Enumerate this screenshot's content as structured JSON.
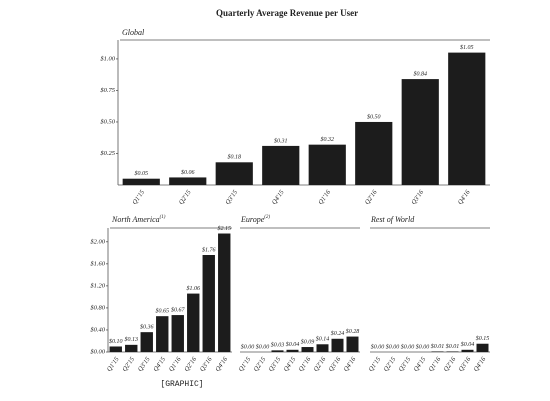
{
  "title": "Quarterly Average Revenue per User",
  "caption": "[GRAPHIC]",
  "chart_data": [
    {
      "type": "bar",
      "title": "Global",
      "color": "#1c1c1c",
      "categories": [
        "Q1'15",
        "Q2'15",
        "Q3'15",
        "Q4'15",
        "Q1'16",
        "Q2'16",
        "Q3'16",
        "Q4'16"
      ],
      "values": [
        0.05,
        0.06,
        0.18,
        0.31,
        0.32,
        0.5,
        0.84,
        1.05
      ],
      "value_labels": [
        "$0.05",
        "$0.06",
        "$0.18",
        "$0.31",
        "$0.32",
        "$0.50",
        "$0.84",
        "$1.05"
      ],
      "ylim": [
        0,
        1.15
      ],
      "yticks": [
        {
          "value": 0.25,
          "label": "$0.25"
        },
        {
          "value": 0.5,
          "label": "$0.50"
        },
        {
          "value": 0.75,
          "label": "$0.75"
        },
        {
          "value": 1.0,
          "label": "$1.00"
        }
      ]
    },
    {
      "type": "bar",
      "title": "North America",
      "footnote_marker": "(1)",
      "color": "#1c1c1c",
      "categories": [
        "Q1'15",
        "Q2'15",
        "Q3'15",
        "Q4'15",
        "Q1'16",
        "Q2'16",
        "Q3'16",
        "Q4'16"
      ],
      "values": [
        0.1,
        0.13,
        0.36,
        0.65,
        0.67,
        1.06,
        1.76,
        2.15
      ],
      "value_labels": [
        "$0.10",
        "$0.13",
        "$0.36",
        "$0.65",
        "$0.67",
        "$1.06",
        "$1.76",
        "$2.15"
      ],
      "ylim": [
        0,
        2.25
      ],
      "yticks": [
        {
          "value": 0,
          "label": "$0.00"
        },
        {
          "value": 0.4,
          "label": "$0.40"
        },
        {
          "value": 0.8,
          "label": "$0.80"
        },
        {
          "value": 1.2,
          "label": "$1.20"
        },
        {
          "value": 1.6,
          "label": "$1.60"
        },
        {
          "value": 2.0,
          "label": "$2.00"
        }
      ]
    },
    {
      "type": "bar",
      "title": "Europe",
      "footnote_marker": "(2)",
      "color": "#1c1c1c",
      "categories": [
        "Q1'15",
        "Q2'15",
        "Q3'15",
        "Q4'15",
        "Q1'16",
        "Q2'16",
        "Q3'16",
        "Q4'16"
      ],
      "values": [
        0.0,
        0.0,
        0.03,
        0.04,
        0.09,
        0.14,
        0.24,
        0.28
      ],
      "value_labels": [
        "$0.00",
        "$0.00",
        "$0.03",
        "$0.04",
        "$0.09",
        "$0.14",
        "$0.24",
        "$0.28"
      ],
      "ylim": [
        0,
        2.25
      ]
    },
    {
      "type": "bar",
      "title": "Rest of World",
      "color": "#1c1c1c",
      "categories": [
        "Q1'15",
        "Q2'15",
        "Q3'15",
        "Q4'15",
        "Q1'16",
        "Q2'16",
        "Q3'16",
        "Q4'16"
      ],
      "values": [
        0.0,
        0.0,
        0.0,
        0.0,
        0.01,
        0.01,
        0.04,
        0.15
      ],
      "value_labels": [
        "$0.00",
        "$0.00",
        "$0.00",
        "$0.00",
        "$0.01",
        "$0.01",
        "$0.04",
        "$0.15"
      ],
      "ylim": [
        0,
        2.25
      ]
    }
  ]
}
